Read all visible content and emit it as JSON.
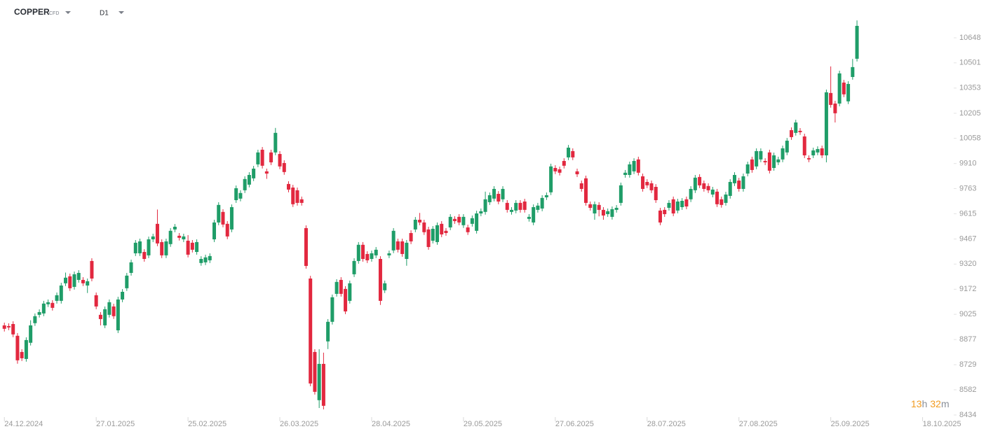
{
  "header": {
    "symbol": "COPPER",
    "instrument_type": "CFD",
    "timeframe": "D1"
  },
  "countdown": {
    "hours": "13",
    "hours_unit": "h",
    "minutes": "32",
    "minutes_unit": "m"
  },
  "chart_data": {
    "type": "candlestick",
    "up_color": "#1f9d68",
    "down_color": "#e2283f",
    "xlim": [
      -1,
      216
    ],
    "ylim": [
      8434,
      10648
    ],
    "yticks": [
      8434,
      8582,
      8729,
      8877,
      9025,
      9172,
      9320,
      9467,
      9615,
      9763,
      9910,
      10058,
      10205,
      10353,
      10501,
      10648
    ],
    "xticks": [
      {
        "value": 0,
        "label": "24.12.2024"
      },
      {
        "value": 21,
        "label": "27.01.2025"
      },
      {
        "value": 42,
        "label": "25.02.2025"
      },
      {
        "value": 63,
        "label": "26.03.2025"
      },
      {
        "value": 84,
        "label": "28.04.2025"
      },
      {
        "value": 105,
        "label": "29.05.2025"
      },
      {
        "value": 126,
        "label": "27.06.2025"
      },
      {
        "value": 147,
        "label": "28.07.2025"
      },
      {
        "value": 168,
        "label": "27.08.2025"
      },
      {
        "value": 189,
        "label": "25.09.2025"
      },
      {
        "value": 210,
        "label": "18.10.2025"
      }
    ],
    "open": [
      8960,
      8956,
      8968,
      8899,
      8804,
      8763,
      8858,
      8973,
      9022,
      9030,
      9084,
      9092,
      9104,
      9104,
      9207,
      9248,
      9186,
      9227,
      9227,
      9194,
      9338,
      9137,
      9022,
      8960,
      9022,
      9071,
      8931,
      9112,
      9178,
      9268,
      9383,
      9383,
      9391,
      9371,
      9465,
      9556,
      9449,
      9371,
      9437,
      9523,
      9486,
      9465,
      9457,
      9445,
      9391,
      9326,
      9330,
      9342,
      9465,
      9564,
      9626,
      9556,
      9523,
      9695,
      9704,
      9753,
      9786,
      9823,
      9905,
      9991,
      9864,
      9975,
      9975,
      9966,
      9913,
      9790,
      9769,
      9753,
      9700,
      9531,
      9235,
      8804,
      8521,
      8734,
      8866,
      8981,
      9145,
      9227,
      9174,
      9104,
      9260,
      9338,
      9433,
      9379,
      9350,
      9371,
      9350,
      9166,
      9371,
      9400,
      9453,
      9453,
      9350,
      9502,
      9523,
      9580,
      9564,
      9523,
      9457,
      9449,
      9556,
      9515,
      9535,
      9585,
      9597,
      9548,
      9535,
      9556,
      9515,
      9617,
      9626,
      9683,
      9704,
      9732,
      9700,
      9679,
      9626,
      9634,
      9679,
      9687,
      9585,
      9564,
      9638,
      9646,
      9712,
      9741,
      9884,
      9876,
      9925,
      9946,
      9983,
      9864,
      9794,
      9823,
      9671,
      9617,
      9667,
      9638,
      9613,
      9597,
      9638,
      9679,
      9843,
      9843,
      9864,
      9934,
      9835,
      9802,
      9794,
      9773,
      9634,
      9638,
      9650,
      9700,
      9634,
      9654,
      9700,
      9700,
      9753,
      9831,
      9794,
      9778,
      9728,
      9745,
      9700,
      9679,
      9720,
      9794,
      9810,
      9761,
      9851,
      9934,
      9893,
      9934,
      9925,
      9975,
      9884,
      9917,
      9934,
      9975,
      10106,
      10090,
      10102,
      10069,
      9942,
      9958,
      9975,
      9999,
      9958,
      10324,
      10262,
      10262,
      10385,
      10275,
      10418,
      10525
    ],
    "high": [
      8976,
      8972,
      8984,
      8915,
      8820,
      8890,
      8990,
      9030,
      9054,
      9104,
      9112,
      9108,
      9153,
      9210,
      9270,
      9264,
      9276,
      9284,
      9243,
      9235,
      9354,
      9153,
      9038,
      9071,
      9112,
      9087,
      9128,
      9173,
      9268,
      9346,
      9461,
      9469,
      9407,
      9481,
      9498,
      9640,
      9465,
      9469,
      9531,
      9555,
      9502,
      9498,
      9490,
      9461,
      9465,
      9366,
      9375,
      9383,
      9580,
      9683,
      9642,
      9572,
      9670,
      9781,
      9753,
      9835,
      9859,
      9896,
      9991,
      10007,
      9880,
      9991,
      10119,
      9983,
      9929,
      9806,
      9785,
      9769,
      9716,
      9547,
      9251,
      8820,
      8820,
      8800,
      8997,
      9141,
      9231,
      9243,
      9190,
      9223,
      9354,
      9449,
      9449,
      9395,
      9399,
      9420,
      9366,
      9223,
      9399,
      9531,
      9469,
      9469,
      9461,
      9518,
      9596,
      9620,
      9580,
      9539,
      9543,
      9564,
      9572,
      9531,
      9613,
      9601,
      9613,
      9613,
      9551,
      9605,
      9633,
      9646,
      9745,
      9740,
      9777,
      9748,
      9777,
      9695,
      9654,
      9695,
      9695,
      9703,
      9613,
      9670,
      9679,
      9724,
      9740,
      9909,
      9900,
      9892,
      9941,
      10019,
      9999,
      9880,
      9810,
      9839,
      9687,
      9687,
      9683,
      9654,
      9646,
      9658,
      9666,
      9798,
      9872,
      9921,
      9941,
      9950,
      9851,
      9818,
      9810,
      9789,
      9650,
      9654,
      9695,
      9716,
      9703,
      9707,
      9716,
      9777,
      9843,
      9847,
      9810,
      9794,
      9773,
      9761,
      9716,
      9744,
      9818,
      9859,
      9826,
      9851,
      9921,
      9950,
      9999,
      9999,
      9941,
      9991,
      9974,
      9950,
      10015,
      10060,
      10122,
      10167,
      10118,
      10085,
      9958,
      10003,
      10011,
      10015,
      10344,
      10480,
      10278,
      10455,
      10401,
      10393,
      10524,
      10750
    ],
    "low": [
      8924,
      8932,
      8891,
      8735,
      8751,
      8747,
      8842,
      8957,
      9006,
      9014,
      9068,
      9047,
      9088,
      9088,
      9191,
      9162,
      9170,
      9211,
      9191,
      9150,
      9219,
      9055,
      8960,
      8944,
      9006,
      8998,
      8915,
      9096,
      9162,
      9252,
      9367,
      9367,
      9334,
      9355,
      9449,
      9425,
      9355,
      9355,
      9421,
      9507,
      9458,
      9449,
      9359,
      9388,
      9375,
      9310,
      9314,
      9326,
      9449,
      9548,
      9536,
      9466,
      9507,
      9679,
      9688,
      9737,
      9770,
      9807,
      9889,
      9881,
      9820,
      9901,
      9959,
      9877,
      9844,
      9741,
      9655,
      9663,
      9663,
      9293,
      8603,
      8554,
      8475,
      8467,
      8821,
      8965,
      9129,
      9129,
      9026,
      9088,
      9244,
      9322,
      9334,
      9326,
      9334,
      9355,
      9080,
      9150,
      9355,
      9384,
      9388,
      9363,
      9310,
      9437,
      9507,
      9548,
      9491,
      9404,
      9441,
      9433,
      9478,
      9486,
      9519,
      9556,
      9548,
      9532,
      9491,
      9540,
      9499,
      9601,
      9610,
      9667,
      9688,
      9671,
      9684,
      9622,
      9610,
      9618,
      9622,
      9622,
      9569,
      9548,
      9622,
      9630,
      9696,
      9725,
      9848,
      9840,
      9881,
      9930,
      9930,
      9831,
      9745,
      9663,
      9634,
      9580,
      9600,
      9580,
      9597,
      9581,
      9622,
      9663,
      9827,
      9827,
      9848,
      9840,
      9745,
      9766,
      9737,
      9679,
      9548,
      9597,
      9634,
      9601,
      9618,
      9638,
      9642,
      9684,
      9737,
      9766,
      9745,
      9737,
      9712,
      9655,
      9651,
      9663,
      9704,
      9778,
      9745,
      9745,
      9835,
      9856,
      9877,
      9918,
      9901,
      9852,
      9868,
      9901,
      9918,
      9959,
      10049,
      10074,
      10078,
      9942,
      9918,
      9942,
      9959,
      9942,
      9917,
      10238,
      10151,
      10246,
      10300,
      10259,
      10402,
      10509
    ],
    "close": [
      8940,
      8948,
      8907,
      8755,
      8767,
      8874,
      8960,
      9014,
      9038,
      9088,
      9096,
      9063,
      9137,
      9194,
      9240,
      9178,
      9260,
      9268,
      9207,
      9219,
      9235,
      9071,
      8997,
      9055,
      9096,
      9014,
      9112,
      9157,
      9252,
      9330,
      9445,
      9453,
      9350,
      9465,
      9482,
      9441,
      9371,
      9453,
      9515,
      9539,
      9474,
      9482,
      9375,
      9404,
      9449,
      9350,
      9359,
      9367,
      9564,
      9667,
      9552,
      9482,
      9654,
      9765,
      9737,
      9819,
      9843,
      9880,
      9975,
      9897,
      9851,
      9917,
      10090,
      9893,
      9860,
      9757,
      9671,
      9679,
      9679,
      9309,
      8619,
      8570,
      8734,
      8488,
      8981,
      9125,
      9215,
      9145,
      9042,
      9207,
      9338,
      9433,
      9350,
      9342,
      9383,
      9404,
      9104,
      9207,
      9383,
      9515,
      9404,
      9379,
      9445,
      9453,
      9580,
      9564,
      9507,
      9420,
      9527,
      9548,
      9494,
      9502,
      9597,
      9572,
      9564,
      9597,
      9507,
      9589,
      9617,
      9630,
      9700,
      9724,
      9761,
      9687,
      9761,
      9638,
      9638,
      9679,
      9638,
      9638,
      9597,
      9654,
      9663,
      9708,
      9724,
      9893,
      9864,
      9856,
      9897,
      10003,
      9946,
      9847,
      9761,
      9679,
      9650,
      9671,
      9638,
      9605,
      9630,
      9642,
      9650,
      9782,
      9856,
      9905,
      9925,
      9856,
      9761,
      9782,
      9753,
      9695,
      9564,
      9613,
      9679,
      9617,
      9687,
      9691,
      9658,
      9761,
      9827,
      9782,
      9761,
      9753,
      9757,
      9671,
      9667,
      9728,
      9802,
      9843,
      9761,
      9835,
      9905,
      9872,
      9983,
      9983,
      9917,
      9868,
      9958,
      9934,
      9999,
      10044,
      10065,
      10151,
      10094,
      9958,
      9934,
      9987,
      9995,
      9958,
      10328,
      10254,
      10205,
      10439,
      10316,
      10377,
      10476,
      10718
    ]
  }
}
